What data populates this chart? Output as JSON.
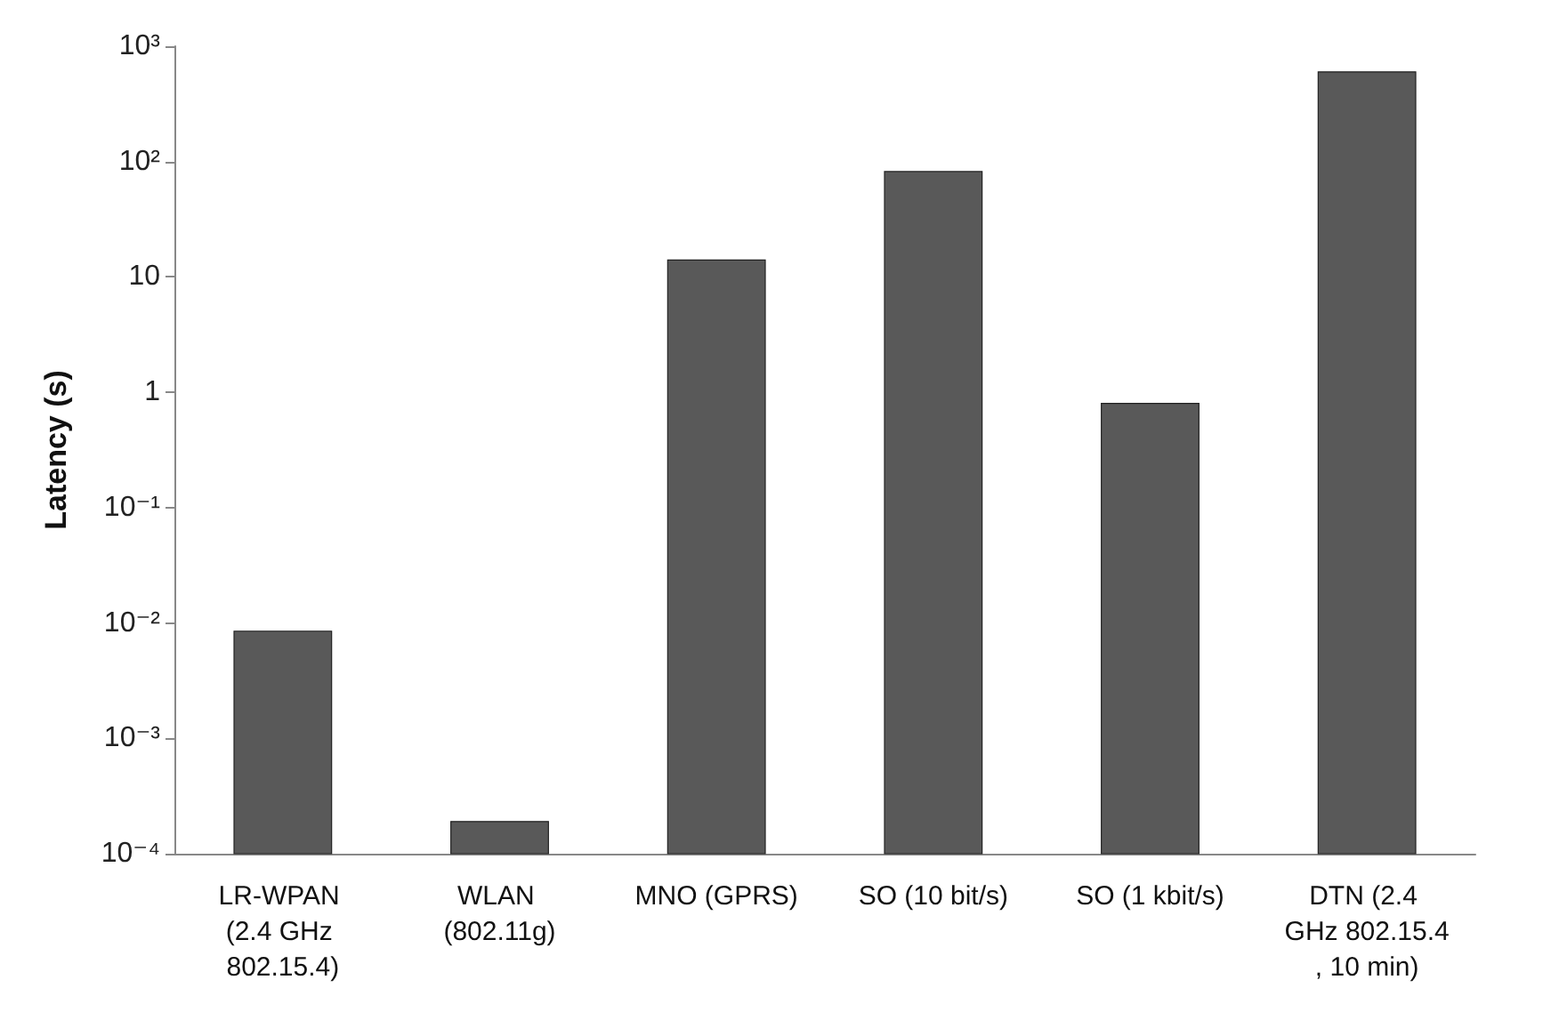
{
  "chart_data": {
    "type": "bar",
    "ylabel": "Latency (s)",
    "categories": [
      "LR-WPAN (2.4 GHz 802.15.4)",
      "WLAN (802.11g)",
      "MNO (GPRS)",
      "SO (10 bit/s)",
      "SO (1 kbit/s)",
      "DTN (2.4 GHz 802.15.4, 10 min)"
    ],
    "values": [
      0.0085,
      0.00019,
      14,
      82,
      0.8,
      600
    ],
    "color": "#595959",
    "log": true,
    "ylim": [
      0.0001,
      1000
    ],
    "yticks": [
      {
        "value": 0.0001,
        "label": "10⁻⁴"
      },
      {
        "value": 0.001,
        "label": "10⁻³"
      },
      {
        "value": 0.01,
        "label": "10⁻²"
      },
      {
        "value": 0.1,
        "label": "10⁻¹"
      },
      1,
      10,
      {
        "value": 100,
        "label": "10²"
      },
      {
        "value": 1000,
        "label": "10³"
      }
    ],
    "grid": false
  }
}
